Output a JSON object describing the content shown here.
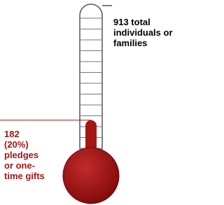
{
  "chart_data": {
    "type": "thermometer",
    "ylim": [
      0,
      913
    ],
    "values": [
      182
    ],
    "value_labels": [
      "182 (20%) pledges or one-time gifts"
    ],
    "goal_label": "913 total individuals or families",
    "color": "#a51616"
  }
}
